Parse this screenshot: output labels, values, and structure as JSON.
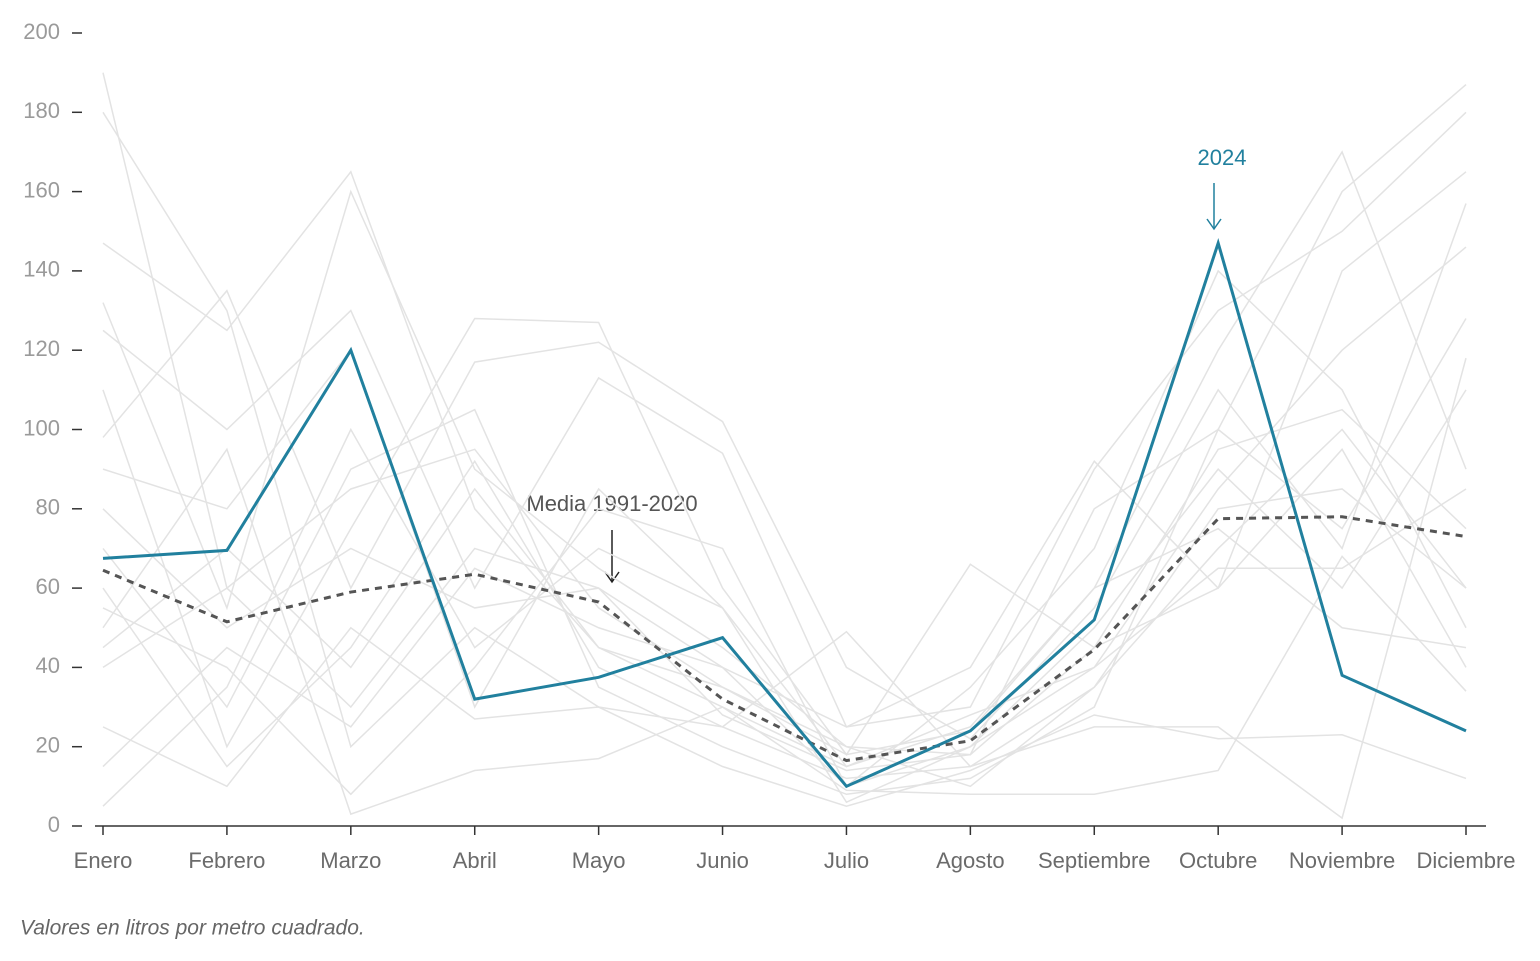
{
  "chart_data": {
    "type": "line",
    "categories": [
      "Enero",
      "Febrero",
      "Marzo",
      "Abril",
      "Mayo",
      "Junio",
      "Julio",
      "Agosto",
      "Septiembre",
      "Octubre",
      "Noviembre",
      "Diciembre"
    ],
    "ylim": [
      0,
      200
    ],
    "yticks": [
      0,
      20,
      40,
      60,
      80,
      100,
      120,
      140,
      160,
      180,
      200
    ],
    "series": [
      {
        "name": "2024",
        "color": "#21809e",
        "values": [
          67.5,
          69.5,
          120,
          32,
          37.5,
          47.5,
          10,
          24,
          52,
          147,
          38,
          24
        ]
      },
      {
        "name": "Media 1991-2020",
        "color": "#555555",
        "dashed": true,
        "values": [
          64.5,
          51.5,
          59,
          63.5,
          56.5,
          32,
          16.5,
          21.5,
          44.5,
          77.5,
          78,
          73
        ]
      }
    ],
    "background_color": "#e3e3e3",
    "background_series": [
      [
        190,
        60,
        30,
        70,
        60,
        40,
        10,
        20,
        50,
        90,
        60,
        110
      ],
      [
        180,
        130,
        20,
        50,
        30,
        25,
        12,
        15,
        35,
        70,
        100,
        60
      ],
      [
        147,
        125,
        165,
        80,
        45,
        30,
        15,
        25,
        60,
        120,
        170,
        90
      ],
      [
        132,
        55,
        160,
        90,
        65,
        45,
        20,
        18,
        80,
        100,
        160,
        187
      ],
      [
        125,
        100,
        130,
        60,
        113,
        94,
        25,
        30,
        90,
        130,
        150,
        180
      ],
      [
        110,
        20,
        75,
        128,
        127,
        60,
        18,
        66,
        45,
        60,
        140,
        165
      ],
      [
        98,
        135,
        60,
        117,
        122,
        102,
        40,
        22,
        55,
        110,
        70,
        157
      ],
      [
        90,
        80,
        120,
        30,
        85,
        55,
        15,
        28,
        40,
        85,
        120,
        146
      ],
      [
        70,
        30,
        90,
        105,
        35,
        20,
        8,
        12,
        30,
        100,
        75,
        128
      ],
      [
        60,
        15,
        45,
        92,
        40,
        25,
        49,
        15,
        25,
        25,
        2,
        118
      ],
      [
        55,
        40,
        8,
        40,
        80,
        70,
        10,
        35,
        70,
        140,
        110,
        50
      ],
      [
        50,
        95,
        3,
        14,
        17,
        30,
        9,
        8,
        8,
        14,
        68,
        34
      ],
      [
        40,
        60,
        85,
        95,
        55,
        35,
        20,
        10,
        35,
        80,
        85,
        60
      ],
      [
        25,
        10,
        50,
        27,
        30,
        15,
        5,
        14,
        28,
        22,
        23,
        12
      ],
      [
        15,
        45,
        25,
        65,
        50,
        40,
        25,
        40,
        92,
        60,
        95,
        40
      ],
      [
        5,
        35,
        100,
        45,
        70,
        55,
        6,
        20,
        40,
        65,
        65,
        85
      ],
      [
        80,
        50,
        70,
        55,
        60,
        28,
        14,
        18,
        45,
        95,
        105,
        75
      ],
      [
        45,
        70,
        40,
        85,
        45,
        35,
        18,
        24,
        60,
        75,
        50,
        45
      ]
    ],
    "annotations": [
      "2024",
      "Media 1991-2020"
    ],
    "note": "Valores en litros por metro cuadrado."
  }
}
